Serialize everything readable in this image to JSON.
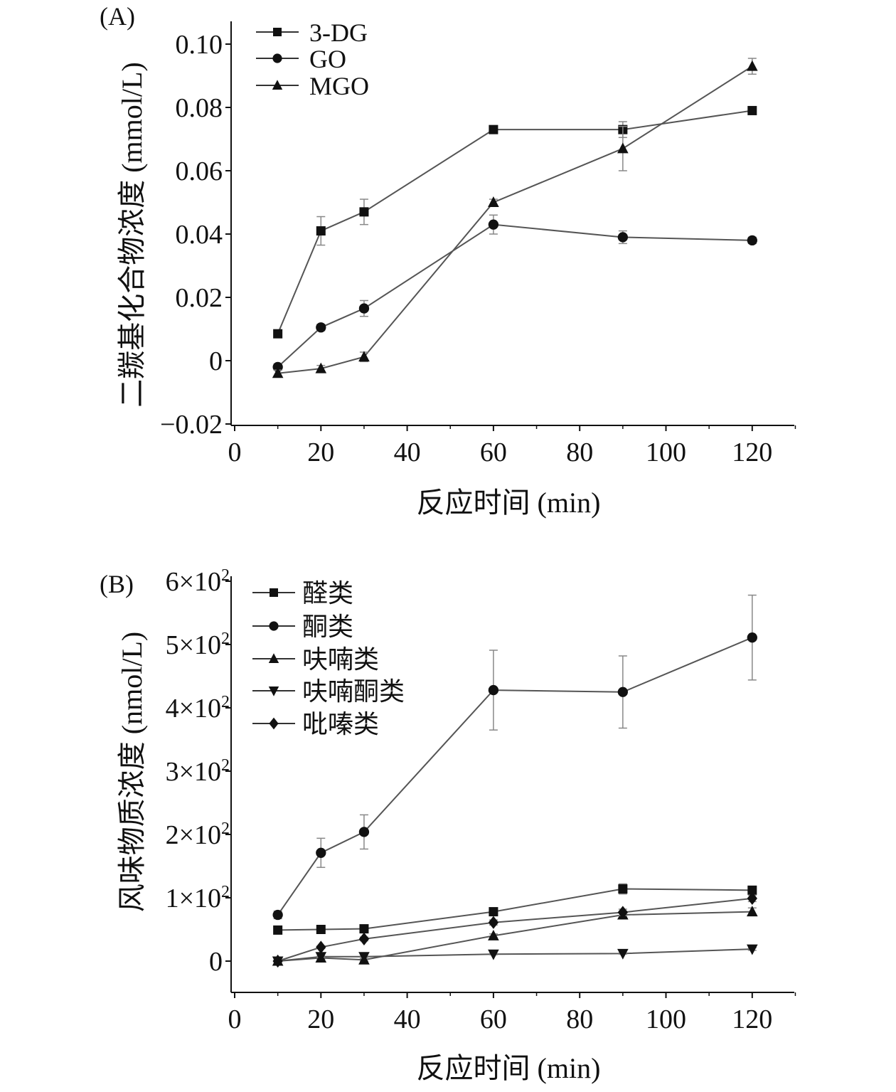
{
  "chart_data": [
    {
      "type": "line",
      "panel_label": "(A)",
      "xlabel": "反应时间 (min)",
      "ylabel": "二羰基化合物浓度 (mmol/L)",
      "xlim": [
        0,
        130
      ],
      "ylim": [
        -0.02,
        0.105
      ],
      "xticks": [
        0,
        20,
        40,
        60,
        80,
        100,
        120
      ],
      "yticks": [
        -0.02,
        0,
        0.02,
        0.04,
        0.06,
        0.08,
        0.1
      ],
      "ytick_labels": [
        "−0.02",
        "0",
        "0.02",
        "0.04",
        "0.06",
        "0.08",
        "0.10"
      ],
      "legend_position": "top-left",
      "x": [
        10,
        20,
        30,
        60,
        90,
        120
      ],
      "series": [
        {
          "name": "3-DG",
          "marker": "square",
          "values": [
            0.0085,
            0.041,
            0.047,
            0.073,
            0.073,
            0.079
          ],
          "errors": [
            0.0005,
            0.0045,
            0.004,
            0.001,
            0.0025,
            0.001
          ]
        },
        {
          "name": "GO",
          "marker": "circle",
          "values": [
            -0.002,
            0.0105,
            0.0165,
            0.043,
            0.039,
            0.038
          ],
          "errors": [
            0.001,
            0.001,
            0.0025,
            0.003,
            0.002,
            0.001
          ]
        },
        {
          "name": "MGO",
          "marker": "triangle-up",
          "values": [
            -0.004,
            -0.0025,
            0.0012,
            0.05,
            0.067,
            0.093
          ],
          "errors": [
            0.001,
            0.001,
            0.0015,
            0.001,
            0.007,
            0.0025
          ]
        }
      ]
    },
    {
      "type": "line",
      "panel_label": "(B)",
      "xlabel": "反应时间 (min)",
      "ylabel": "风味物质浓度 (nmol/L)",
      "xlim": [
        0,
        130
      ],
      "ylim": [
        -50,
        600
      ],
      "xticks": [
        0,
        20,
        40,
        60,
        80,
        100,
        120
      ],
      "yticks": [
        0,
        100,
        200,
        300,
        400,
        500,
        600
      ],
      "ytick_labels": [
        "0",
        "1×10²",
        "2×10²",
        "3×10²",
        "4×10²",
        "5×10²",
        "6×10²"
      ],
      "legend_position": "top-left",
      "x": [
        10,
        20,
        30,
        60,
        90,
        120
      ],
      "series": [
        {
          "name": "醛类",
          "marker": "square",
          "values": [
            49,
            50,
            51,
            78,
            114,
            112
          ],
          "errors": [
            3,
            3,
            4,
            6,
            8,
            5
          ]
        },
        {
          "name": "酮类",
          "marker": "circle",
          "values": [
            73,
            171,
            204,
            428,
            425,
            511
          ],
          "errors": [
            6,
            23,
            27,
            63,
            57,
            67
          ]
        },
        {
          "name": "呋喃类",
          "marker": "triangle-up",
          "values": [
            0,
            5,
            2,
            40,
            73,
            78
          ],
          "errors": [
            2,
            2,
            2,
            3,
            6,
            6
          ]
        },
        {
          "name": "呋喃酮类",
          "marker": "triangle-down",
          "values": [
            0,
            7,
            7,
            11,
            12,
            19
          ],
          "errors": [
            1,
            1,
            1,
            1,
            1,
            2
          ]
        },
        {
          "name": "吡嗪类",
          "marker": "diamond",
          "values": [
            0,
            22,
            35,
            61,
            77,
            99
          ],
          "errors": [
            2,
            2,
            3,
            4,
            5,
            5
          ]
        }
      ]
    }
  ]
}
